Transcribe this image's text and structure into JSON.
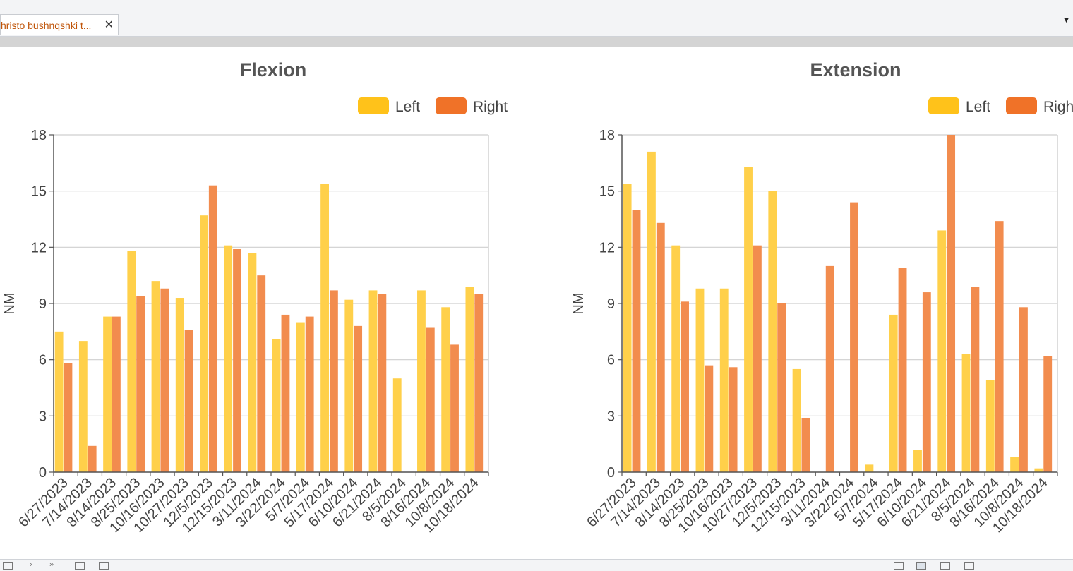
{
  "tab": {
    "label": "hristo bushnqshki t...",
    "close": "✕",
    "dropdown": "▼"
  },
  "colors": {
    "left": "#ffd04a",
    "right": "#f28c4e",
    "legend_left": "#ffc21a",
    "legend_right": "#f07228"
  },
  "chart_data": [
    {
      "type": "bar",
      "title": "Flexion",
      "ylabel": "NM",
      "ylim": [
        0,
        18
      ],
      "yticks": [
        0,
        3,
        6,
        9,
        12,
        15,
        18
      ],
      "legend": {
        "placement": "top-right",
        "entries": [
          "Left",
          "Right"
        ]
      },
      "grid": true,
      "categories": [
        "6/27/2023",
        "7/14/2023",
        "8/14/2023",
        "8/25/2023",
        "10/16/2023",
        "10/27/2023",
        "12/5/2023",
        "12/15/2023",
        "3/11/2024",
        "3/22/2024",
        "5/7/2024",
        "5/17/2024",
        "6/10/2024",
        "6/21/2024",
        "8/5/2024",
        "8/16/2024",
        "10/8/2024",
        "10/18/2024"
      ],
      "series": [
        {
          "name": "Left",
          "values": [
            7.5,
            7.0,
            8.3,
            11.8,
            10.2,
            9.3,
            13.7,
            12.1,
            11.7,
            7.1,
            8.0,
            15.4,
            9.2,
            9.7,
            5.0,
            9.7,
            8.8,
            9.9
          ]
        },
        {
          "name": "Right",
          "values": [
            5.8,
            1.4,
            8.3,
            9.4,
            9.8,
            7.6,
            15.3,
            11.9,
            10.5,
            8.4,
            8.3,
            9.7,
            7.8,
            9.5,
            0,
            7.7,
            6.8,
            9.5
          ]
        }
      ]
    },
    {
      "type": "bar",
      "title": "Extension",
      "ylabel": "NM",
      "ylim": [
        0,
        18
      ],
      "yticks": [
        0,
        3,
        6,
        9,
        12,
        15,
        18
      ],
      "legend": {
        "placement": "top-right",
        "entries": [
          "Left",
          "Right"
        ]
      },
      "grid": true,
      "categories": [
        "6/27/2023",
        "7/14/2023",
        "8/14/2023",
        "8/25/2023",
        "10/16/2023",
        "10/27/2023",
        "12/5/2023",
        "12/15/2023",
        "3/11/2024",
        "3/22/2024",
        "5/7/2024",
        "5/17/2024",
        "6/10/2024",
        "6/21/2024",
        "8/5/2024",
        "8/16/2024",
        "10/8/2024",
        "10/18/2024"
      ],
      "series": [
        {
          "name": "Left",
          "values": [
            15.4,
            17.1,
            12.1,
            9.8,
            9.8,
            16.3,
            15.0,
            5.5,
            0,
            0,
            0.4,
            8.4,
            1.2,
            12.9,
            6.3,
            4.9,
            0.8,
            0.2
          ]
        },
        {
          "name": "Right",
          "values": [
            14.0,
            13.3,
            9.1,
            5.7,
            5.6,
            12.1,
            9.0,
            2.9,
            11.0,
            14.4,
            0,
            10.9,
            9.6,
            18.0,
            9.9,
            13.4,
            8.8,
            6.2
          ]
        }
      ]
    }
  ]
}
